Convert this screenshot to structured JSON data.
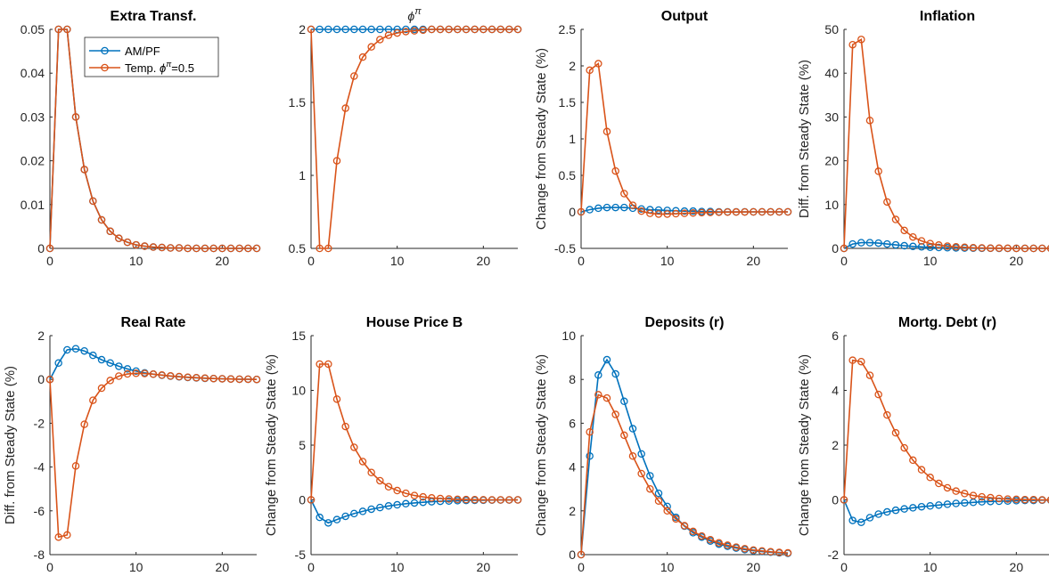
{
  "series_names": [
    "AM/PF",
    "Temp. φ^π=0.5"
  ],
  "colors": {
    "am_pf": "#0072BD",
    "temp": "#D95319"
  },
  "legend": {
    "items": [
      "AM/PF",
      "Temp. ϕ",
      "π",
      "=0.5"
    ]
  },
  "chart_data": [
    {
      "type": "line",
      "title": "Extra Transf.",
      "ylabel": "",
      "xlim": [
        0,
        24
      ],
      "ylim": [
        0,
        0.05
      ],
      "xticks": [
        "0",
        "10",
        "20"
      ],
      "yticks": [
        "0",
        "0.01",
        "0.02",
        "0.03",
        "0.04",
        "0.05"
      ],
      "x": [
        0,
        1,
        2,
        3,
        4,
        5,
        6,
        7,
        8,
        9,
        10,
        11,
        12,
        13,
        14,
        15,
        16,
        17,
        18,
        19,
        20,
        21,
        22,
        23,
        24
      ],
      "series": [
        {
          "name": "AM/PF",
          "values": [
            0,
            0.05,
            0.05,
            0.03,
            0.018,
            0.0108,
            0.0065,
            0.0039,
            0.0023,
            0.0014,
            0.0008,
            0.0005,
            0.0003,
            0.0002,
            0.0001,
            0.0001,
            0,
            0,
            0,
            0,
            0,
            0,
            0,
            0,
            0
          ]
        },
        {
          "name": "Temp. φ^π=0.5",
          "values": [
            0,
            0.05,
            0.05,
            0.03,
            0.018,
            0.0108,
            0.0065,
            0.0039,
            0.0023,
            0.0014,
            0.0008,
            0.0005,
            0.0003,
            0.0002,
            0.0001,
            0.0001,
            0,
            0,
            0,
            0,
            0,
            0,
            0,
            0,
            0
          ]
        }
      ]
    },
    {
      "type": "line",
      "title": "ϕ^π",
      "ylabel": "",
      "xlim": [
        0,
        24
      ],
      "ylim": [
        0.5,
        2
      ],
      "xticks": [
        "0",
        "10",
        "20"
      ],
      "yticks": [
        "0.5",
        "1",
        "1.5",
        "2"
      ],
      "x": [
        0,
        1,
        2,
        3,
        4,
        5,
        6,
        7,
        8,
        9,
        10,
        11,
        12,
        13,
        14,
        15,
        16,
        17,
        18,
        19,
        20,
        21,
        22,
        23,
        24
      ],
      "series": [
        {
          "name": "AM/PF",
          "values": [
            2,
            2,
            2,
            2,
            2,
            2,
            2,
            2,
            2,
            2,
            2,
            2,
            2,
            2,
            2,
            2,
            2,
            2,
            2,
            2,
            2,
            2,
            2,
            2,
            2
          ]
        },
        {
          "name": "Temp. φ^π=0.5",
          "values": [
            2,
            0.5,
            0.5,
            1.1,
            1.46,
            1.68,
            1.81,
            1.88,
            1.93,
            1.96,
            1.975,
            1.985,
            1.99,
            1.995,
            2,
            2,
            2,
            2,
            2,
            2,
            2,
            2,
            2,
            2,
            2
          ]
        }
      ]
    },
    {
      "type": "line",
      "title": "Output",
      "ylabel": "Change from Steady State (%)",
      "xlim": [
        0,
        24
      ],
      "ylim": [
        -0.5,
        2.5
      ],
      "xticks": [
        "0",
        "10",
        "20"
      ],
      "yticks": [
        "-0.5",
        "0",
        "0.5",
        "1",
        "1.5",
        "2",
        "2.5"
      ],
      "x": [
        0,
        1,
        2,
        3,
        4,
        5,
        6,
        7,
        8,
        9,
        10,
        11,
        12,
        13,
        14,
        15,
        16,
        17,
        18,
        19,
        20,
        21,
        22,
        23,
        24
      ],
      "series": [
        {
          "name": "AM/PF",
          "values": [
            0,
            0.03,
            0.05,
            0.06,
            0.06,
            0.06,
            0.05,
            0.04,
            0.03,
            0.025,
            0.02,
            0.015,
            0.01,
            0.01,
            0.005,
            0.005,
            0,
            0,
            0,
            0,
            0,
            0,
            0,
            0,
            0
          ]
        },
        {
          "name": "Temp. φ^π=0.5",
          "values": [
            0,
            1.94,
            2.03,
            1.1,
            0.56,
            0.25,
            0.09,
            0.01,
            -0.02,
            -0.03,
            -0.03,
            -0.025,
            -0.02,
            -0.015,
            -0.01,
            -0.008,
            -0.005,
            -0.003,
            -0.002,
            -0.001,
            0,
            0,
            0,
            0,
            0
          ]
        }
      ]
    },
    {
      "type": "line",
      "title": "Inflation",
      "ylabel": "Diff. from Steady State (%)",
      "xlim": [
        0,
        24
      ],
      "ylim": [
        0,
        50
      ],
      "xticks": [
        "0",
        "10",
        "20"
      ],
      "yticks": [
        "0",
        "10",
        "20",
        "30",
        "40",
        "50"
      ],
      "x": [
        0,
        1,
        2,
        3,
        4,
        5,
        6,
        7,
        8,
        9,
        10,
        11,
        12,
        13,
        14,
        15,
        16,
        17,
        18,
        19,
        20,
        21,
        22,
        23,
        24
      ],
      "series": [
        {
          "name": "AM/PF",
          "values": [
            0,
            1.0,
            1.3,
            1.3,
            1.2,
            1.0,
            0.8,
            0.6,
            0.45,
            0.35,
            0.25,
            0.2,
            0.15,
            0.1,
            0.08,
            0.05,
            0.03,
            0.02,
            0.01,
            0.01,
            0,
            0,
            0,
            0,
            0
          ]
        },
        {
          "name": "Temp. φ^π=0.5",
          "values": [
            0,
            46.5,
            47.7,
            29.2,
            17.6,
            10.6,
            6.6,
            4.1,
            2.6,
            1.7,
            1.1,
            0.75,
            0.5,
            0.35,
            0.25,
            0.15,
            0.1,
            0.06,
            0.04,
            0.02,
            0.01,
            0,
            0,
            0,
            0
          ]
        }
      ]
    },
    {
      "type": "line",
      "title": "Real Rate",
      "ylabel": "Diff. from Steady State (%)",
      "xlim": [
        0,
        24
      ],
      "ylim": [
        -8,
        2
      ],
      "xticks": [
        "0",
        "10",
        "20"
      ],
      "yticks": [
        "-8",
        "-6",
        "-4",
        "-2",
        "0",
        "2"
      ],
      "x": [
        0,
        1,
        2,
        3,
        4,
        5,
        6,
        7,
        8,
        9,
        10,
        11,
        12,
        13,
        14,
        15,
        16,
        17,
        18,
        19,
        20,
        21,
        22,
        23,
        24
      ],
      "series": [
        {
          "name": "AM/PF",
          "values": [
            0,
            0.75,
            1.35,
            1.4,
            1.3,
            1.1,
            0.9,
            0.75,
            0.6,
            0.48,
            0.38,
            0.3,
            0.24,
            0.19,
            0.15,
            0.12,
            0.09,
            0.07,
            0.05,
            0.04,
            0.03,
            0.02,
            0.01,
            0.01,
            0
          ]
        },
        {
          "name": "Temp. φ^π=0.5",
          "values": [
            0,
            -7.2,
            -7.1,
            -3.95,
            -2.05,
            -0.95,
            -0.4,
            -0.05,
            0.15,
            0.25,
            0.28,
            0.27,
            0.24,
            0.2,
            0.16,
            0.13,
            0.1,
            0.08,
            0.06,
            0.04,
            0.03,
            0.02,
            0.01,
            0.01,
            0
          ]
        }
      ]
    },
    {
      "type": "line",
      "title": "House Price B",
      "ylabel": "Change from Steady State (%)",
      "xlim": [
        0,
        24
      ],
      "ylim": [
        -5,
        15
      ],
      "xticks": [
        "0",
        "10",
        "20"
      ],
      "yticks": [
        "-5",
        "0",
        "5",
        "10",
        "15"
      ],
      "x": [
        0,
        1,
        2,
        3,
        4,
        5,
        6,
        7,
        8,
        9,
        10,
        11,
        12,
        13,
        14,
        15,
        16,
        17,
        18,
        19,
        20,
        21,
        22,
        23,
        24
      ],
      "series": [
        {
          "name": "AM/PF",
          "values": [
            0,
            -1.6,
            -2.1,
            -1.8,
            -1.5,
            -1.25,
            -1.05,
            -0.85,
            -0.7,
            -0.55,
            -0.45,
            -0.35,
            -0.28,
            -0.22,
            -0.17,
            -0.13,
            -0.1,
            -0.07,
            -0.05,
            -0.04,
            -0.03,
            -0.02,
            -0.01,
            -0.01,
            0
          ]
        },
        {
          "name": "Temp. φ^π=0.5",
          "values": [
            0,
            12.4,
            12.4,
            9.2,
            6.7,
            4.8,
            3.5,
            2.5,
            1.75,
            1.2,
            0.85,
            0.6,
            0.4,
            0.27,
            0.18,
            0.12,
            0.08,
            0.05,
            0.03,
            0.02,
            0.01,
            0,
            0,
            0,
            0
          ]
        }
      ]
    },
    {
      "type": "line",
      "title": "Deposits (r)",
      "ylabel": "Change from Steady State (%)",
      "xlim": [
        0,
        24
      ],
      "ylim": [
        0,
        10
      ],
      "xticks": [
        "0",
        "10",
        "20"
      ],
      "yticks": [
        "0",
        "2",
        "4",
        "6",
        "8",
        "10"
      ],
      "x": [
        0,
        1,
        2,
        3,
        4,
        5,
        6,
        7,
        8,
        9,
        10,
        11,
        12,
        13,
        14,
        15,
        16,
        17,
        18,
        19,
        20,
        21,
        22,
        23,
        24
      ],
      "series": [
        {
          "name": "AM/PF",
          "values": [
            0,
            4.5,
            8.2,
            8.9,
            8.25,
            7.0,
            5.75,
            4.6,
            3.6,
            2.8,
            2.2,
            1.7,
            1.3,
            1.0,
            0.8,
            0.62,
            0.48,
            0.38,
            0.3,
            0.23,
            0.18,
            0.14,
            0.11,
            0.08,
            0.06
          ]
        },
        {
          "name": "Temp. φ^π=0.5",
          "values": [
            0,
            5.6,
            7.3,
            7.15,
            6.4,
            5.45,
            4.5,
            3.7,
            3.0,
            2.45,
            2.0,
            1.63,
            1.32,
            1.06,
            0.85,
            0.68,
            0.54,
            0.43,
            0.34,
            0.27,
            0.21,
            0.17,
            0.13,
            0.1,
            0.08
          ]
        }
      ]
    },
    {
      "type": "line",
      "title": "Mortg. Debt (r)",
      "ylabel": "Change from Steady State (%)",
      "xlim": [
        0,
        24
      ],
      "ylim": [
        -2,
        6
      ],
      "xticks": [
        "0",
        "10",
        "20"
      ],
      "yticks": [
        "-2",
        "0",
        "2",
        "4",
        "6"
      ],
      "x": [
        0,
        1,
        2,
        3,
        4,
        5,
        6,
        7,
        8,
        9,
        10,
        11,
        12,
        13,
        14,
        15,
        16,
        17,
        18,
        19,
        20,
        21,
        22,
        23,
        24
      ],
      "series": [
        {
          "name": "AM/PF",
          "values": [
            0,
            -0.75,
            -0.82,
            -0.65,
            -0.52,
            -0.44,
            -0.38,
            -0.33,
            -0.29,
            -0.25,
            -0.22,
            -0.19,
            -0.16,
            -0.13,
            -0.11,
            -0.09,
            -0.07,
            -0.06,
            -0.05,
            -0.04,
            -0.03,
            -0.02,
            -0.02,
            -0.01,
            -0.01
          ]
        },
        {
          "name": "Temp. φ^π=0.5",
          "values": [
            0,
            5.1,
            5.05,
            4.55,
            3.85,
            3.1,
            2.45,
            1.9,
            1.45,
            1.1,
            0.82,
            0.6,
            0.44,
            0.32,
            0.23,
            0.16,
            0.11,
            0.08,
            0.05,
            0.03,
            0.02,
            0.01,
            0.01,
            0,
            0
          ]
        }
      ]
    }
  ]
}
